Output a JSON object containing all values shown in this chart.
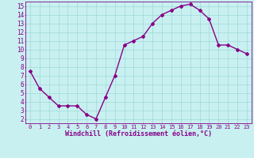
{
  "x": [
    0,
    1,
    2,
    3,
    4,
    5,
    6,
    7,
    8,
    9,
    10,
    11,
    12,
    13,
    14,
    15,
    16,
    17,
    18,
    19,
    20,
    21,
    22,
    23
  ],
  "y": [
    7.5,
    5.5,
    4.5,
    3.5,
    3.5,
    3.5,
    2.5,
    2.0,
    4.5,
    7.0,
    10.5,
    11.0,
    11.5,
    13.0,
    14.0,
    14.5,
    15.0,
    15.2,
    14.5,
    13.5,
    10.5,
    10.5,
    10.0,
    9.5
  ],
  "line_color": "#880088",
  "marker": "D",
  "marker_size": 2,
  "bg_color": "#c8f0f0",
  "grid_color": "#a0d8d8",
  "xlabel": "Windchill (Refroidissement éolien,°C)",
  "xlabel_color": "#880088",
  "tick_color": "#880088",
  "xlim": [
    -0.5,
    23.5
  ],
  "ylim": [
    1.5,
    15.5
  ],
  "yticks": [
    2,
    3,
    4,
    5,
    6,
    7,
    8,
    9,
    10,
    11,
    12,
    13,
    14,
    15
  ],
  "xticks": [
    0,
    1,
    2,
    3,
    4,
    5,
    6,
    7,
    8,
    9,
    10,
    11,
    12,
    13,
    14,
    15,
    16,
    17,
    18,
    19,
    20,
    21,
    22,
    23
  ],
  "spine_color": "#880088",
  "linewidth": 1.0
}
